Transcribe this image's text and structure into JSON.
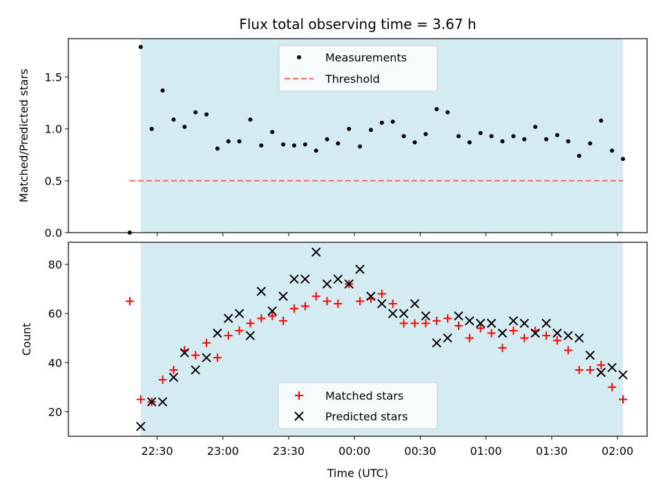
{
  "chart_data": {
    "type": "scatter",
    "title": "Flux total observing time = 3.67 h",
    "xlabel": "Time (UTC)",
    "x_ticks": [
      "22:30",
      "23:00",
      "23:30",
      "00:00",
      "00:30",
      "01:00",
      "01:30",
      "02:00"
    ],
    "x_tick_minutes": [
      0,
      30,
      60,
      90,
      120,
      150,
      180,
      210
    ],
    "shaded_span": [
      -7.5,
      212.5
    ],
    "times": [
      -12.5,
      -7.5,
      -2.5,
      2.5,
      7.5,
      12.5,
      17.5,
      22.5,
      27.5,
      32.5,
      37.5,
      42.5,
      47.5,
      52.5,
      57.5,
      62.5,
      67.5,
      72.5,
      77.5,
      82.5,
      87.5,
      92.5,
      97.5,
      102.5,
      107.5,
      112.5,
      117.5,
      122.5,
      127.5,
      132.5,
      137.5,
      142.5,
      147.5,
      152.5,
      157.5,
      162.5,
      167.5,
      172.5,
      177.5,
      182.5,
      187.5,
      192.5,
      197.5,
      202.5,
      207.5,
      212.5
    ],
    "panels": [
      {
        "ylabel": "Matched/Predicted stars",
        "ylim": [
          0,
          1.87
        ],
        "yticks": [
          0.0,
          0.5,
          1.0,
          1.5
        ],
        "ytick_labels": [
          "0.0",
          "0.5",
          "1.0",
          "1.5"
        ],
        "legend_position": "top-center",
        "series": [
          {
            "name": "Measurements",
            "marker": "dot",
            "color": "#000000",
            "values": [
              0.0,
              1.79,
              1.0,
              1.37,
              1.09,
              1.02,
              1.16,
              1.14,
              0.81,
              0.88,
              0.88,
              1.09,
              0.84,
              0.97,
              0.85,
              0.84,
              0.85,
              0.79,
              0.9,
              0.86,
              1.0,
              0.83,
              0.99,
              1.06,
              1.07,
              0.93,
              0.87,
              0.95,
              1.19,
              1.16,
              0.93,
              0.87,
              0.96,
              0.93,
              0.88,
              0.93,
              0.9,
              1.02,
              0.9,
              0.94,
              0.88,
              0.74,
              0.86,
              1.08,
              0.79,
              0.71
            ]
          }
        ],
        "lines": [
          {
            "name": "Threshold",
            "value": 0.5,
            "x_range": [
              -12.5,
              212.5
            ],
            "color": "#ff6e6e",
            "style": "dashed"
          }
        ]
      },
      {
        "ylabel": "Count",
        "ylim": [
          10,
          89
        ],
        "yticks": [
          20,
          40,
          60,
          80
        ],
        "ytick_labels": [
          "20",
          "40",
          "60",
          "80"
        ],
        "legend_position": "bottom-center",
        "series": [
          {
            "name": "Matched stars",
            "marker": "plus",
            "color": "#ff0000",
            "values": [
              65,
              25,
              24,
              33,
              37,
              45,
              43,
              48,
              42,
              51,
              53,
              56,
              58,
              59,
              57,
              62,
              63,
              67,
              65,
              64,
              72,
              65,
              66,
              68,
              64,
              56,
              56,
              56,
              57,
              58,
              55,
              50,
              54,
              52,
              46,
              53,
              50,
              53,
              51,
              49,
              45,
              37,
              37,
              39,
              30,
              25
            ]
          },
          {
            "name": "Predicted stars",
            "marker": "x",
            "color": "#000000",
            "values": [
              null,
              14,
              24,
              24,
              34,
              44,
              37,
              42,
              52,
              58,
              60,
              51,
              69,
              61,
              67,
              74,
              74,
              85,
              72,
              74,
              72,
              78,
              67,
              64,
              60,
              60,
              64,
              59,
              48,
              50,
              59,
              57,
              56,
              56,
              52,
              57,
              56,
              52,
              56,
              52,
              51,
              50,
              43,
              36,
              38,
              35
            ]
          }
        ]
      }
    ],
    "colors": {
      "shade": "#d3ebf1",
      "threshold": "#ff6e6e",
      "matched": "#ff0000",
      "predicted": "#000000"
    },
    "legend_upper": {
      "measurements": "Measurements",
      "threshold": "Threshold"
    },
    "legend_lower": {
      "matched": "Matched stars",
      "predicted": "Predicted stars"
    }
  }
}
